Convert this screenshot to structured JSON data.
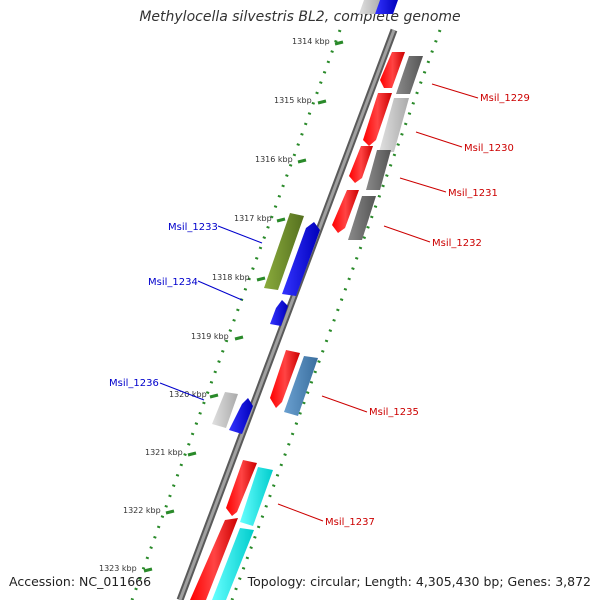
{
  "title": "Methylocella silvestris BL2, complete genome",
  "accession_text": "Accession: NC_011666",
  "topology_text": "Topology: circular; Length: 4,305,430 bp; Genes: 3,872",
  "colors": {
    "backbone": "#888888",
    "tick_dots": "#2a8a2a",
    "red_gene": "#ff0000",
    "red_label": "#cc0000",
    "blue_label": "#0000cc",
    "dark_gray_gene": "#6a6a6a",
    "light_gray_gene": "#c8c8c8",
    "blue_gene": "#0000ff",
    "green_gene": "#6f8f2a",
    "steel_gene": "#4682b4",
    "cyan_gene": "#00ffff"
  },
  "ticks": [
    "1314 kbp",
    "1315 kbp",
    "1316 kbp",
    "1317 kbp",
    "1318 kbp",
    "1319 kbp",
    "1320 kbp",
    "1321 kbp",
    "1322 kbp",
    "1323 kbp"
  ],
  "gene_labels": [
    {
      "id": "msil_1229",
      "text": "Msil_1229",
      "color": "red"
    },
    {
      "id": "msil_1230",
      "text": "Msil_1230",
      "color": "red"
    },
    {
      "id": "msil_1231",
      "text": "Msil_1231",
      "color": "red"
    },
    {
      "id": "msil_1232",
      "text": "Msil_1232",
      "color": "red"
    },
    {
      "id": "msil_1233",
      "text": "Msil_1233",
      "color": "blue"
    },
    {
      "id": "msil_1234",
      "text": "Msil_1234",
      "color": "blue"
    },
    {
      "id": "msil_1235",
      "text": "Msil_1235",
      "color": "red"
    },
    {
      "id": "msil_1236",
      "text": "Msil_1236",
      "color": "blue"
    },
    {
      "id": "msil_1237",
      "text": "Msil_1237",
      "color": "red"
    }
  ]
}
